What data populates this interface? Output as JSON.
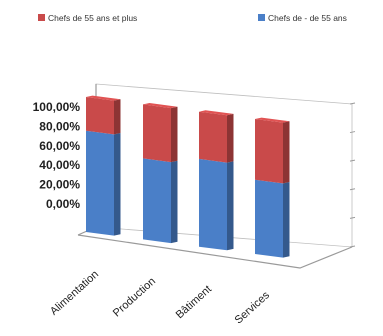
{
  "chart_data": {
    "type": "bar",
    "stacked": true,
    "percent_stacked": true,
    "three_d": true,
    "categories": [
      "Alimentation",
      "Production",
      "Bâtiment",
      "Services"
    ],
    "series": [
      {
        "name": "Chefs de - de 55 ans",
        "color": "#4a7fc8",
        "values": [
          75,
          60,
          65,
          55
        ]
      },
      {
        "name": "Chefs de 55 ans et plus",
        "color": "#c94a4a",
        "values": [
          25,
          40,
          35,
          45
        ]
      }
    ],
    "ylim": [
      0,
      100
    ],
    "y_ticks": [
      "100,00%",
      "80,00%",
      "60,00%",
      "40,00%",
      "20,00%",
      "0,00%"
    ],
    "legend_position": "top",
    "grid": false
  }
}
